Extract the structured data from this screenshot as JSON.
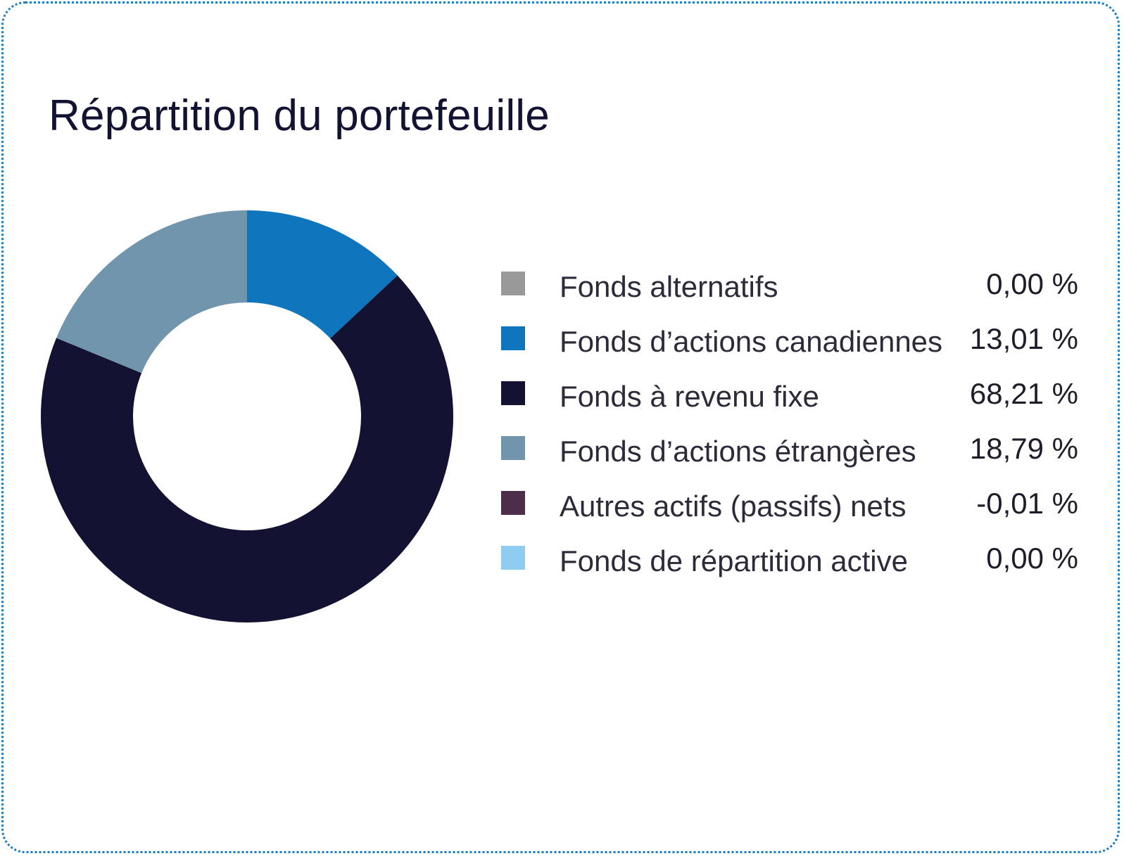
{
  "title": "Répartition du portefeuille",
  "chart_data": {
    "type": "pie",
    "title": "Répartition du portefeuille",
    "legend_position": "right",
    "series": [
      {
        "name": "Fonds alternatifs",
        "value": 0.0,
        "value_label": "0,00 %",
        "color": "#999999"
      },
      {
        "name": "Fonds d’actions canadiennes",
        "value": 13.01,
        "value_label": "13,01 %",
        "color": "#0f76be"
      },
      {
        "name": "Fonds à revenu fixe",
        "value": 68.21,
        "value_label": "68,21 %",
        "color": "#131232"
      },
      {
        "name": "Fonds d’actions étrangères",
        "value": 18.79,
        "value_label": "18,79 %",
        "color": "#7195ac"
      },
      {
        "name": "Autres actifs (passifs) nets",
        "value": -0.01,
        "value_label": "-0,01 %",
        "color": "#4e2d4b"
      },
      {
        "name": "Fonds de répartition active",
        "value": 0.0,
        "value_label": "0,00 %",
        "color": "#8ecdf1"
      }
    ]
  }
}
